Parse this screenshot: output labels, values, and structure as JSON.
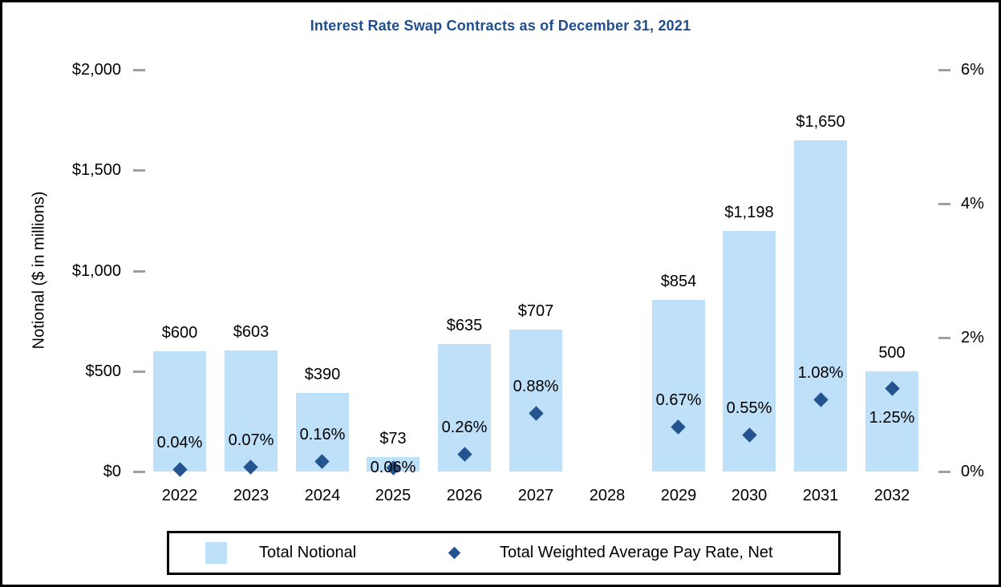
{
  "title": "Interest Rate Swap Contracts as of December 31, 2021",
  "axes": {
    "left": {
      "title": "Notional ($ in millions)",
      "ticks": [
        {
          "label": "$2,000",
          "value": 2000
        },
        {
          "label": "$1,500",
          "value": 1500
        },
        {
          "label": "$1,000",
          "value": 1000
        },
        {
          "label": "$500",
          "value": 500
        },
        {
          "label": "$0",
          "value": 0
        }
      ]
    },
    "right": {
      "ticks": [
        {
          "label": "6%",
          "value": 6
        },
        {
          "label": "4%",
          "value": 4
        },
        {
          "label": "2%",
          "value": 2
        },
        {
          "label": "0%",
          "value": 0
        }
      ]
    }
  },
  "legend": {
    "items": [
      {
        "label": "Total Notional",
        "marker": "square"
      },
      {
        "label": "Total Weighted Average Pay Rate, Net",
        "marker": "diamond"
      }
    ]
  },
  "colors": {
    "bar": "#BEE0F8",
    "marker": "#24548F",
    "title": "#1F4E8D",
    "tick_dash": "#A0A0A0",
    "text": "#000000"
  },
  "chart_data": {
    "type": "bar",
    "categories": [
      "2022",
      "2023",
      "2024",
      "2025",
      "2026",
      "2027",
      "2028",
      "2029",
      "2030",
      "2031",
      "2032"
    ],
    "series": [
      {
        "name": "Total Notional",
        "type": "bar",
        "axis": "left",
        "values": [
          600,
          603,
          390,
          73,
          635,
          707,
          null,
          854,
          1198,
          1650,
          500
        ],
        "labels": [
          "$600",
          "$603",
          "$390",
          "$73",
          "$635",
          "$707",
          "",
          "$854",
          "$1,198",
          "$1,650",
          "500"
        ]
      },
      {
        "name": "Total Weighted Average Pay Rate, Net",
        "type": "scatter",
        "axis": "right",
        "values": [
          0.04,
          0.07,
          0.16,
          0.06,
          0.26,
          0.88,
          null,
          0.67,
          0.55,
          1.08,
          1.25
        ],
        "labels": [
          "0.04%",
          "0.07%",
          "0.16%",
          "0.06%",
          "0.26%",
          "0.88%",
          "",
          "0.67%",
          "0.55%",
          "1.08%",
          "1.25%"
        ],
        "label_positions": [
          "above",
          "above",
          "above",
          "on",
          "above",
          "above",
          "",
          "above",
          "above",
          "above",
          "below"
        ]
      }
    ],
    "ylim_left": [
      0,
      2000
    ],
    "ylim_right": [
      0,
      6
    ],
    "grid": false,
    "legend_position": "bottom"
  }
}
